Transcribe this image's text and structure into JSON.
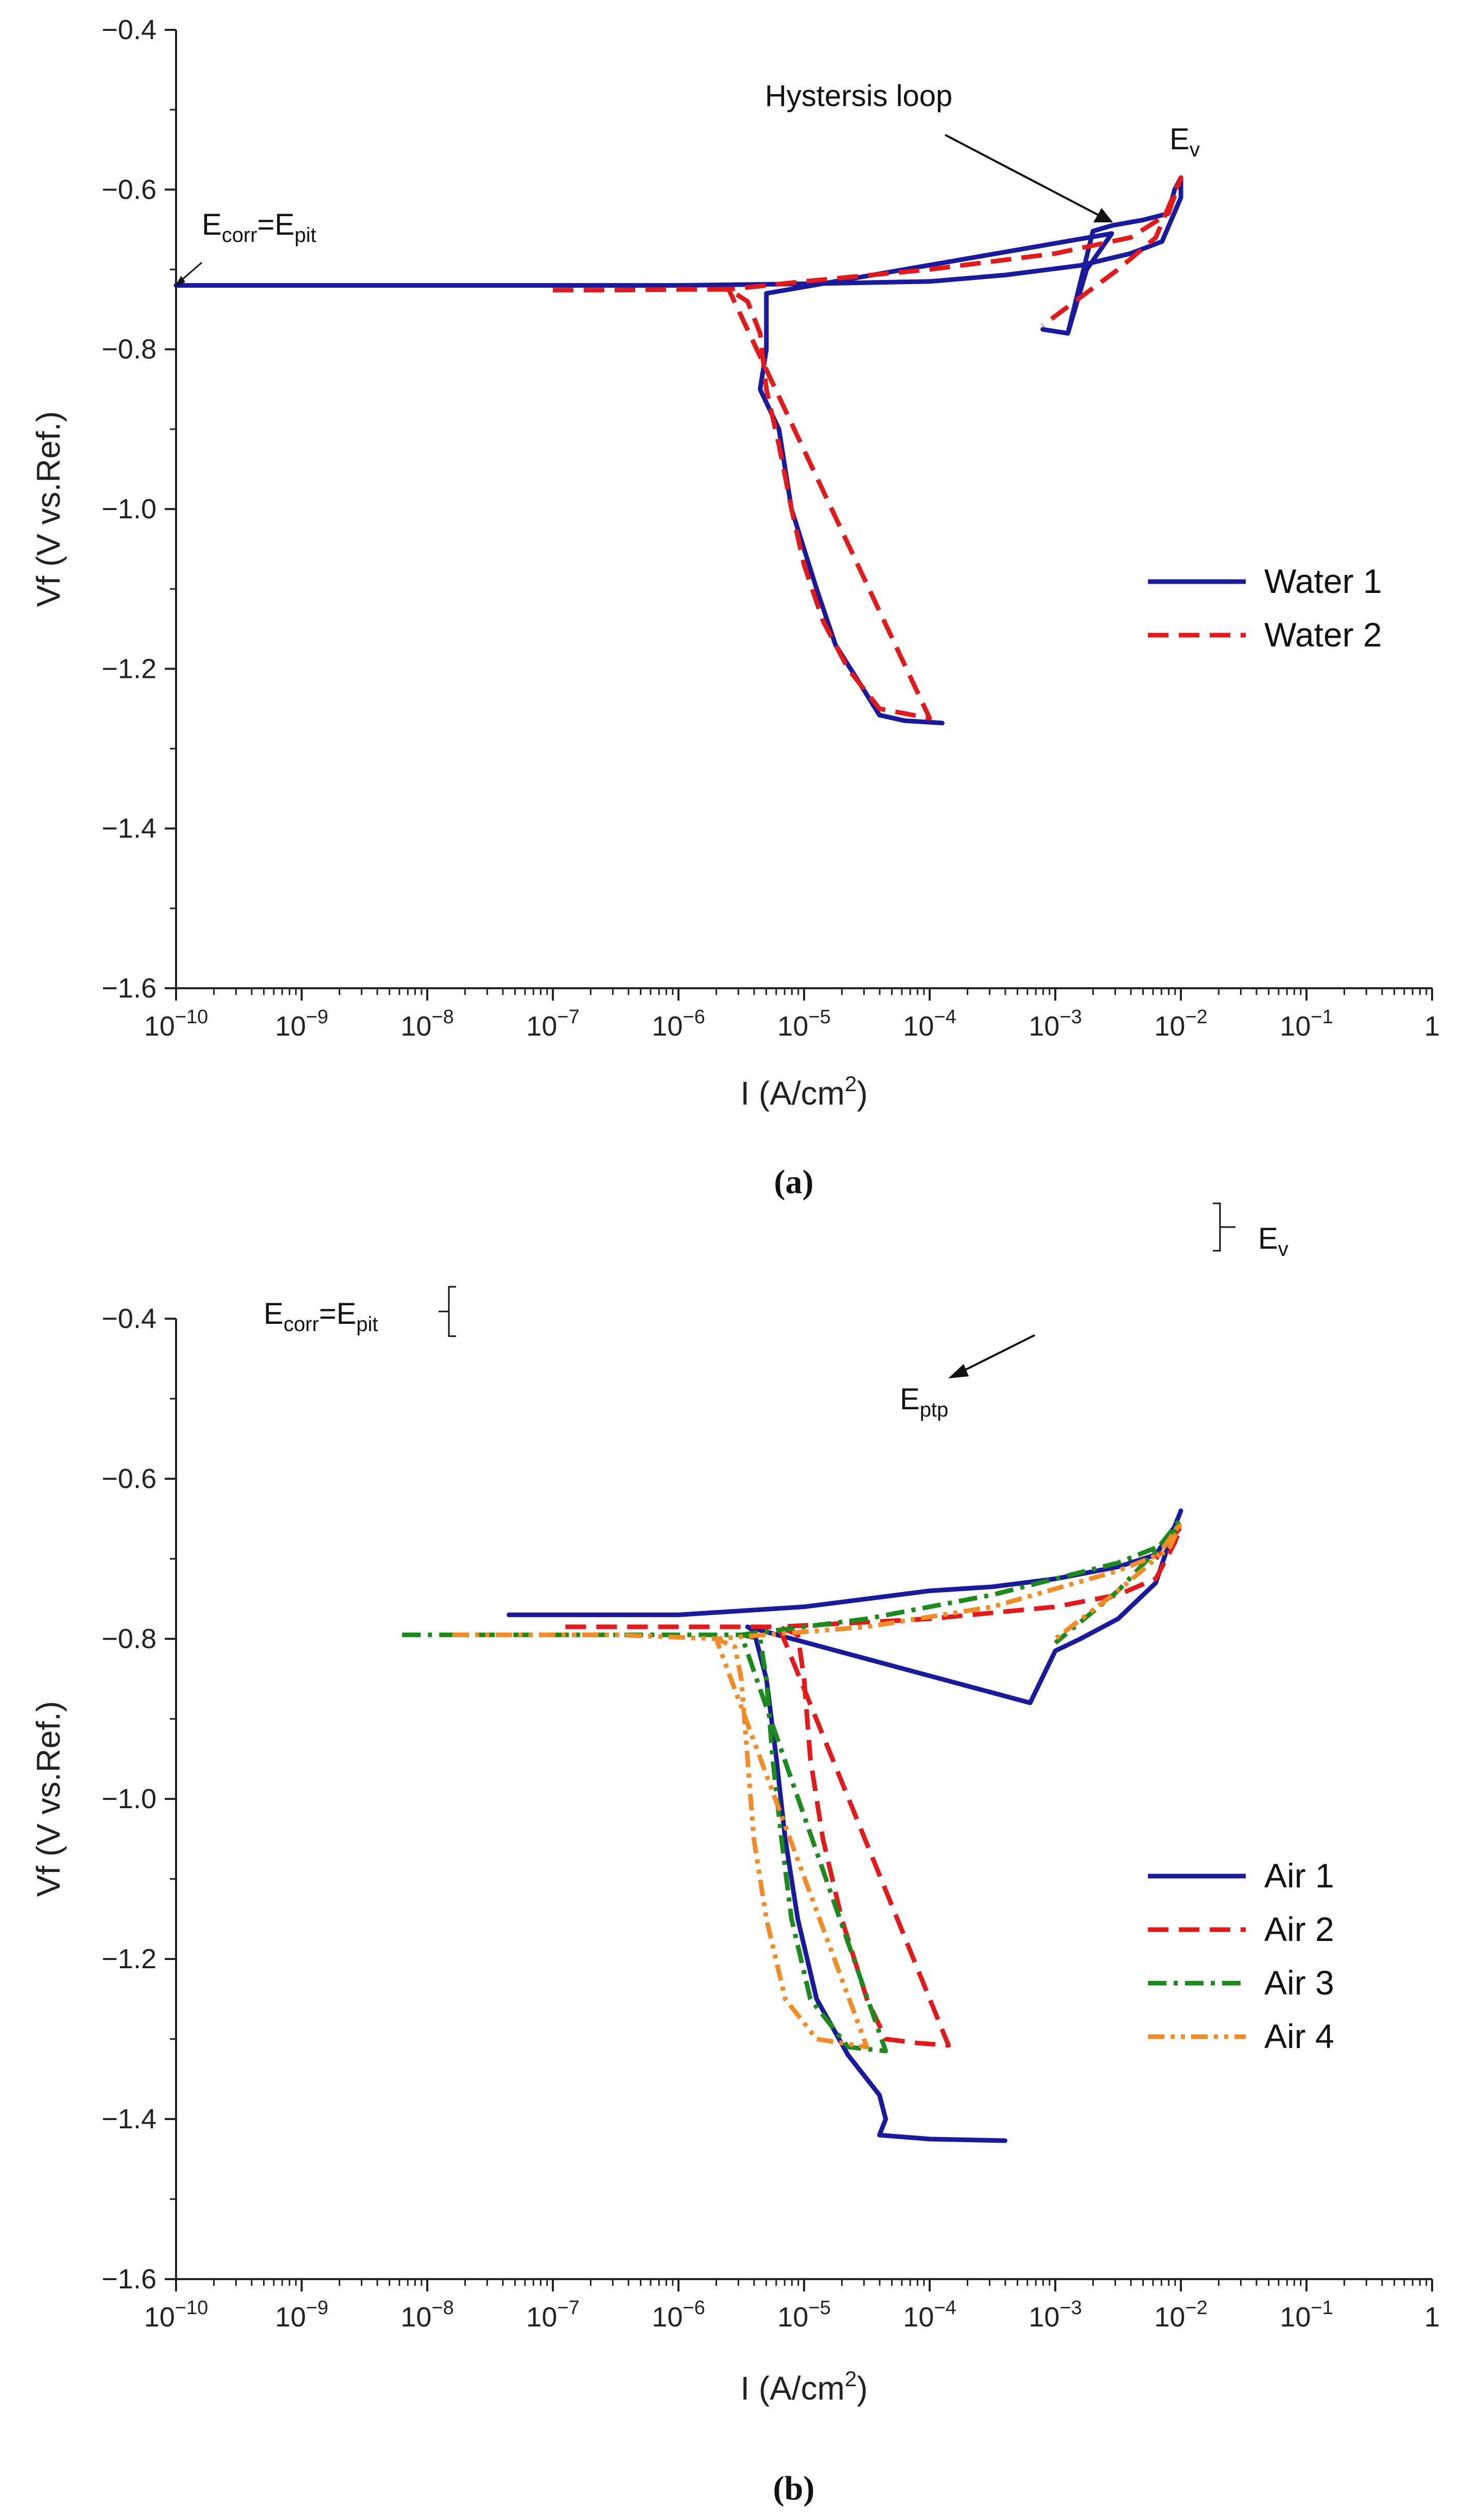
{
  "chart_data": [
    {
      "panel": "a",
      "type": "line",
      "caption": "(a)",
      "xlabel_main": "I (A/cm",
      "xlabel_sup": "2",
      "xlabel_end": ")",
      "ylabel": "Vf (V vs.Ref.)",
      "xscale": "log",
      "xlim": [
        1e-10,
        1
      ],
      "ylim": [
        -1.6,
        -0.4
      ],
      "x_ticks": [
        {
          "base": "10",
          "exp": "-10",
          "e": -10
        },
        {
          "base": "10",
          "exp": "-9",
          "e": -9
        },
        {
          "base": "10",
          "exp": "-8",
          "e": -8
        },
        {
          "base": "10",
          "exp": "-7",
          "e": -7
        },
        {
          "base": "10",
          "exp": "-6",
          "e": -6
        },
        {
          "base": "10",
          "exp": "-5",
          "e": -5
        },
        {
          "base": "10",
          "exp": "-4",
          "e": -4
        },
        {
          "base": "10",
          "exp": "-3",
          "e": -3
        },
        {
          "base": "10",
          "exp": "-2",
          "e": -2
        },
        {
          "base": "10",
          "exp": "-1",
          "e": -1
        },
        {
          "base": "1",
          "exp": "",
          "e": 0
        }
      ],
      "y_ticks": [
        {
          "label": "-0.4",
          "value": -0.4
        },
        {
          "label": "-0.6",
          "value": -0.6
        },
        {
          "label": "-0.8",
          "value": -0.8
        },
        {
          "label": "-1.0",
          "value": -1.0
        },
        {
          "label": "-1.2",
          "value": -1.2
        },
        {
          "label": "-1.4",
          "value": -1.4
        },
        {
          "label": "-1.6",
          "value": -1.6
        }
      ],
      "legend": {
        "position": "center-right",
        "entries": [
          "Water 1",
          "Water 2"
        ]
      },
      "series": [
        {
          "name": "Water 1",
          "color": "#1a1a9c",
          "dash": "solid",
          "points": [
            [
              -10,
              -0.72
            ],
            [
              -8,
              -0.72
            ],
            [
              -6,
              -0.72
            ],
            [
              -5,
              -0.718
            ],
            [
              -4,
              -0.715
            ],
            [
              -3.4,
              -0.707
            ],
            [
              -2.8,
              -0.695
            ],
            [
              -2.4,
              -0.68
            ],
            [
              -2.15,
              -0.665
            ],
            [
              -2.0,
              -0.61
            ],
            [
              -2.0,
              -0.585
            ],
            [
              -2.05,
              -0.6
            ],
            [
              -2.1,
              -0.63
            ],
            [
              -2.3,
              -0.638
            ],
            [
              -2.55,
              -0.645
            ],
            [
              -2.7,
              -0.652
            ],
            [
              -2.9,
              -0.78
            ],
            [
              -3.1,
              -0.775
            ],
            [
              -2.9,
              -0.78
            ],
            [
              -2.75,
              -0.7
            ],
            [
              -2.55,
              -0.655
            ],
            [
              -5.3,
              -0.73
            ],
            [
              -5.3,
              -0.8
            ],
            [
              -5.35,
              -0.85
            ],
            [
              -5.2,
              -0.9
            ],
            [
              -5.15,
              -0.95
            ],
            [
              -5.1,
              -1.0
            ],
            [
              -5.0,
              -1.05
            ],
            [
              -4.9,
              -1.1
            ],
            [
              -4.75,
              -1.17
            ],
            [
              -4.55,
              -1.22
            ],
            [
              -4.4,
              -1.258
            ],
            [
              -4.2,
              -1.265
            ],
            [
              -3.9,
              -1.268
            ]
          ]
        },
        {
          "name": "Water 2",
          "color": "#e31a1c",
          "dash": "dashed",
          "points": [
            [
              -7.0,
              -0.726
            ],
            [
              -6.5,
              -0.726
            ],
            [
              -6.0,
              -0.725
            ],
            [
              -5.6,
              -0.725
            ],
            [
              -5.45,
              -0.74
            ],
            [
              -5.35,
              -0.78
            ],
            [
              -5.3,
              -0.85
            ],
            [
              -5.2,
              -0.92
            ],
            [
              -5.1,
              -1.0
            ],
            [
              -5.0,
              -1.07
            ],
            [
              -4.85,
              -1.14
            ],
            [
              -4.65,
              -1.2
            ],
            [
              -4.4,
              -1.25
            ],
            [
              -4.0,
              -1.262
            ],
            [
              -5.6,
              -0.725
            ],
            [
              -5.0,
              -0.715
            ],
            [
              -4.0,
              -0.7
            ],
            [
              -3.0,
              -0.68
            ],
            [
              -2.4,
              -0.66
            ],
            [
              -2.1,
              -0.63
            ],
            [
              -2.0,
              -0.585
            ],
            [
              -2.2,
              -0.66
            ],
            [
              -2.5,
              -0.7
            ],
            [
              -2.8,
              -0.735
            ],
            [
              -3.1,
              -0.77
            ]
          ]
        }
      ],
      "annotations": [
        {
          "id": "ecorr",
          "main": "E",
          "sub1": "corr",
          "mid": "=E",
          "sub2": "pit"
        },
        {
          "id": "hyst",
          "text": "Hystersis loop"
        },
        {
          "id": "ev",
          "main": "E",
          "sub": "v"
        }
      ]
    },
    {
      "panel": "b",
      "type": "line",
      "caption": "(b)",
      "xlabel_main": "I (A/cm",
      "xlabel_sup": "2",
      "xlabel_end": ")",
      "ylabel": "Vf (V vs.Ref.)",
      "xscale": "log",
      "xlim": [
        1e-10,
        1
      ],
      "ylim": [
        -1.6,
        -0.4
      ],
      "x_ticks": [
        {
          "base": "10",
          "exp": "-10",
          "e": -10
        },
        {
          "base": "10",
          "exp": "-9",
          "e": -9
        },
        {
          "base": "10",
          "exp": "-8",
          "e": -8
        },
        {
          "base": "10",
          "exp": "-7",
          "e": -7
        },
        {
          "base": "10",
          "exp": "-6",
          "e": -6
        },
        {
          "base": "10",
          "exp": "-5",
          "e": -5
        },
        {
          "base": "10",
          "exp": "-4",
          "e": -4
        },
        {
          "base": "10",
          "exp": "-3",
          "e": -3
        },
        {
          "base": "10",
          "exp": "-2",
          "e": -2
        },
        {
          "base": "10",
          "exp": "-1",
          "e": -1
        },
        {
          "base": "1",
          "exp": "",
          "e": 0
        }
      ],
      "y_ticks": [
        {
          "label": "-0.4",
          "value": -0.4
        },
        {
          "label": "-0.6",
          "value": -0.6
        },
        {
          "label": "-0.8",
          "value": -0.8
        },
        {
          "label": "-1.0",
          "value": -1.0
        },
        {
          "label": "-1.2",
          "value": -1.2
        },
        {
          "label": "-1.4",
          "value": -1.4
        },
        {
          "label": "-1.6",
          "value": -1.6
        }
      ],
      "legend": {
        "position": "bottom-right",
        "entries": [
          "Air 1",
          "Air 2",
          "Air 3",
          "Air 4"
        ]
      },
      "series": [
        {
          "name": "Air 1",
          "color": "#1a1a9c",
          "dash": "solid",
          "points": [
            [
              -7.35,
              -0.77
            ],
            [
              -6.0,
              -0.77
            ],
            [
              -5.5,
              -0.765
            ],
            [
              -5.0,
              -0.76
            ],
            [
              -4.5,
              -0.75
            ],
            [
              -4.0,
              -0.74
            ],
            [
              -3.5,
              -0.735
            ],
            [
              -3.0,
              -0.725
            ],
            [
              -2.5,
              -0.71
            ],
            [
              -2.2,
              -0.695
            ],
            [
              -2.05,
              -0.66
            ],
            [
              -2.0,
              -0.64
            ],
            [
              -2.05,
              -0.66
            ],
            [
              -2.2,
              -0.73
            ],
            [
              -2.5,
              -0.775
            ],
            [
              -2.8,
              -0.8
            ],
            [
              -3.0,
              -0.815
            ],
            [
              -3.2,
              -0.88
            ],
            [
              -5.45,
              -0.785
            ],
            [
              -5.4,
              -0.79
            ],
            [
              -5.3,
              -0.85
            ],
            [
              -5.22,
              -0.95
            ],
            [
              -5.15,
              -1.05
            ],
            [
              -5.05,
              -1.15
            ],
            [
              -4.9,
              -1.25
            ],
            [
              -4.65,
              -1.32
            ],
            [
              -4.4,
              -1.37
            ],
            [
              -4.35,
              -1.4
            ],
            [
              -4.4,
              -1.42
            ],
            [
              -4.0,
              -1.425
            ],
            [
              -3.4,
              -1.427
            ]
          ]
        },
        {
          "name": "Air 2",
          "color": "#e31a1c",
          "dash": "dashed",
          "points": [
            [
              -6.9,
              -0.785
            ],
            [
              -5.5,
              -0.785
            ],
            [
              -5.2,
              -0.785
            ],
            [
              -5.05,
              -0.795
            ],
            [
              -5.0,
              -0.85
            ],
            [
              -4.95,
              -0.95
            ],
            [
              -4.85,
              -1.05
            ],
            [
              -4.7,
              -1.15
            ],
            [
              -4.5,
              -1.25
            ],
            [
              -4.35,
              -1.3
            ],
            [
              -4.1,
              -1.305
            ],
            [
              -3.85,
              -1.308
            ],
            [
              -5.2,
              -0.785
            ],
            [
              -4.0,
              -0.775
            ],
            [
              -3.0,
              -0.76
            ],
            [
              -2.5,
              -0.745
            ],
            [
              -2.2,
              -0.725
            ],
            [
              -2.05,
              -0.68
            ],
            [
              -2.0,
              -0.66
            ],
            [
              -2.2,
              -0.7
            ]
          ]
        },
        {
          "name": "Air 3",
          "color": "#1e8a1e",
          "dash": "dashdot",
          "points": [
            [
              -8.2,
              -0.795
            ],
            [
              -6.5,
              -0.795
            ],
            [
              -5.5,
              -0.795
            ],
            [
              -5.35,
              -0.8
            ],
            [
              -5.3,
              -0.85
            ],
            [
              -5.25,
              -0.95
            ],
            [
              -5.18,
              -1.05
            ],
            [
              -5.1,
              -1.15
            ],
            [
              -4.95,
              -1.25
            ],
            [
              -4.65,
              -1.31
            ],
            [
              -4.35,
              -1.315
            ],
            [
              -5.5,
              -0.795
            ],
            [
              -4.5,
              -0.775
            ],
            [
              -3.5,
              -0.745
            ],
            [
              -2.5,
              -0.705
            ],
            [
              -2.1,
              -0.68
            ],
            [
              -2.0,
              -0.65
            ],
            [
              -2.2,
              -0.69
            ],
            [
              -2.5,
              -0.74
            ],
            [
              -3.0,
              -0.805
            ]
          ]
        },
        {
          "name": "Air 4",
          "color": "#f28c28",
          "dash": "dashdotdot",
          "points": [
            [
              -7.8,
              -0.795
            ],
            [
              -6.5,
              -0.795
            ],
            [
              -5.7,
              -0.8
            ],
            [
              -5.55,
              -0.81
            ],
            [
              -5.5,
              -0.85
            ],
            [
              -5.45,
              -0.95
            ],
            [
              -5.4,
              -1.05
            ],
            [
              -5.3,
              -1.15
            ],
            [
              -5.15,
              -1.25
            ],
            [
              -4.9,
              -1.3
            ],
            [
              -4.5,
              -1.31
            ],
            [
              -5.7,
              -0.8
            ],
            [
              -4.5,
              -0.785
            ],
            [
              -3.5,
              -0.76
            ],
            [
              -2.5,
              -0.715
            ],
            [
              -2.1,
              -0.69
            ],
            [
              -2.0,
              -0.655
            ],
            [
              -2.2,
              -0.7
            ],
            [
              -2.5,
              -0.74
            ],
            [
              -3.0,
              -0.8
            ]
          ]
        }
      ],
      "annotations": [
        {
          "id": "ecorr",
          "main": "E",
          "sub1": "corr",
          "mid": "=E",
          "sub2": "pit"
        },
        {
          "id": "ev",
          "main": "E",
          "sub": "v"
        },
        {
          "id": "eptp",
          "main": "E",
          "sub": "ptp"
        }
      ]
    }
  ]
}
